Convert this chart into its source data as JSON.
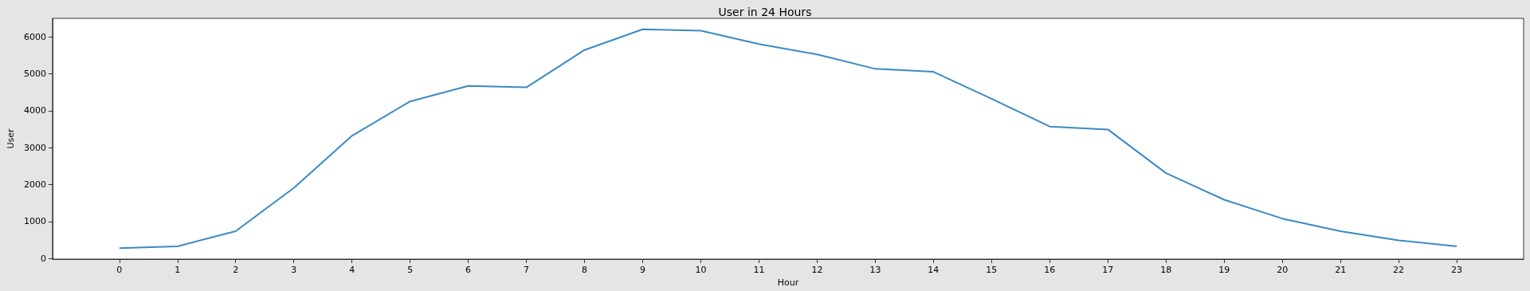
{
  "chart_data": {
    "type": "line",
    "title": "User in 24 Hours",
    "xlabel": "Hour",
    "ylabel": "User",
    "x": [
      0,
      1,
      2,
      3,
      4,
      5,
      6,
      7,
      8,
      9,
      10,
      11,
      12,
      13,
      14,
      15,
      16,
      17,
      18,
      19,
      20,
      21,
      22,
      23
    ],
    "series": [
      {
        "color": "#3a8ac4",
        "values": [
          280,
          330,
          740,
          1910,
          3320,
          4250,
          4670,
          4630,
          5640,
          6200,
          6160,
          5800,
          5520,
          5130,
          5050,
          4320,
          3570,
          3490,
          2310,
          1590,
          1080,
          740,
          490,
          330
        ]
      }
    ],
    "xlim": [
      -1.15,
      24.15
    ],
    "xticks": [
      0,
      1,
      2,
      3,
      4,
      5,
      6,
      7,
      8,
      9,
      10,
      11,
      12,
      13,
      14,
      15,
      16,
      17,
      18,
      19,
      20,
      21,
      22,
      23
    ],
    "ylim": [
      -16,
      6496
    ],
    "yticks": [
      0,
      1000,
      2000,
      3000,
      4000,
      5000,
      6000
    ],
    "grid": false,
    "marker": "none",
    "line_style": "solid"
  }
}
